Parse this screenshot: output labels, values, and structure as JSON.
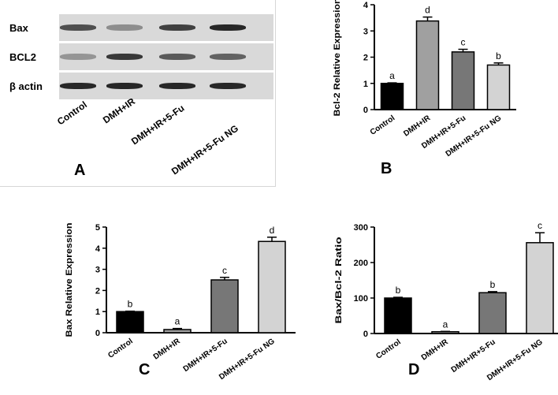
{
  "figure": {
    "blot": {
      "rows": [
        {
          "label": "Bax",
          "intensities": [
            0.72,
            0.35,
            0.8,
            0.95
          ]
        },
        {
          "label": "BCL2",
          "intensities": [
            0.3,
            0.85,
            0.65,
            0.6
          ]
        },
        {
          "label": "β actin",
          "intensities": [
            0.95,
            0.95,
            0.95,
            0.95
          ]
        }
      ],
      "categories": [
        "Control",
        "DMH+IR",
        "DMH+IR+5-Fu",
        "DMH+IR+5-Fu NG"
      ],
      "letter": "A"
    },
    "panel_letters": {
      "b": "B",
      "c": "C",
      "d": "D"
    },
    "colors": {
      "control": "#000000",
      "dmh_ir": "#a0a0a0",
      "dmh_ir_5fu": "#777777",
      "dmh_ir_5fu_ng": "#d3d3d3"
    }
  },
  "chart_data": [
    {
      "type": "bar",
      "panel": "B",
      "categories": [
        "Control",
        "DMH+IR",
        "DMH+IR+5-Fu",
        "DMH+IR+5-Fu NG"
      ],
      "values": [
        1.0,
        3.38,
        2.2,
        1.7
      ],
      "errors": [
        0.02,
        0.15,
        0.1,
        0.08
      ],
      "annotations": [
        "a",
        "d",
        "c",
        "b"
      ],
      "ylabel": "Bcl-2 Relative Expression",
      "ylim": [
        0,
        4
      ],
      "yticks": [
        "0",
        "1",
        "2",
        "3",
        "4"
      ],
      "colors": [
        "#000000",
        "#a0a0a0",
        "#777777",
        "#d3d3d3"
      ]
    },
    {
      "type": "bar",
      "panel": "C",
      "categories": [
        "Control",
        "DMH+IR",
        "DMH+IR+5-Fu",
        "DMH+IR+5-Fu NG"
      ],
      "values": [
        1.0,
        0.15,
        2.5,
        4.32
      ],
      "errors": [
        0.02,
        0.05,
        0.12,
        0.2
      ],
      "annotations": [
        "b",
        "a",
        "c",
        "d"
      ],
      "ylabel": "Bax Relative Expression",
      "ylim": [
        0,
        5
      ],
      "yticks": [
        "0",
        "1",
        "2",
        "3",
        "4",
        "5"
      ],
      "colors": [
        "#000000",
        "#a0a0a0",
        "#777777",
        "#d3d3d3"
      ]
    },
    {
      "type": "bar",
      "panel": "D",
      "categories": [
        "Control",
        "DMH+IR",
        "DMH+IR+5-Fu",
        "DMH+IR+5-Fu NG"
      ],
      "values": [
        100,
        5,
        115,
        256
      ],
      "errors": [
        2,
        1,
        3,
        28
      ],
      "annotations": [
        "b",
        "a",
        "b",
        "c"
      ],
      "ylabel": "Bax/Bcl-2 Ratio",
      "ylim": [
        0,
        300
      ],
      "yticks": [
        "0",
        "100",
        "200",
        "300"
      ],
      "colors": [
        "#000000",
        "#a0a0a0",
        "#777777",
        "#d3d3d3"
      ]
    }
  ]
}
